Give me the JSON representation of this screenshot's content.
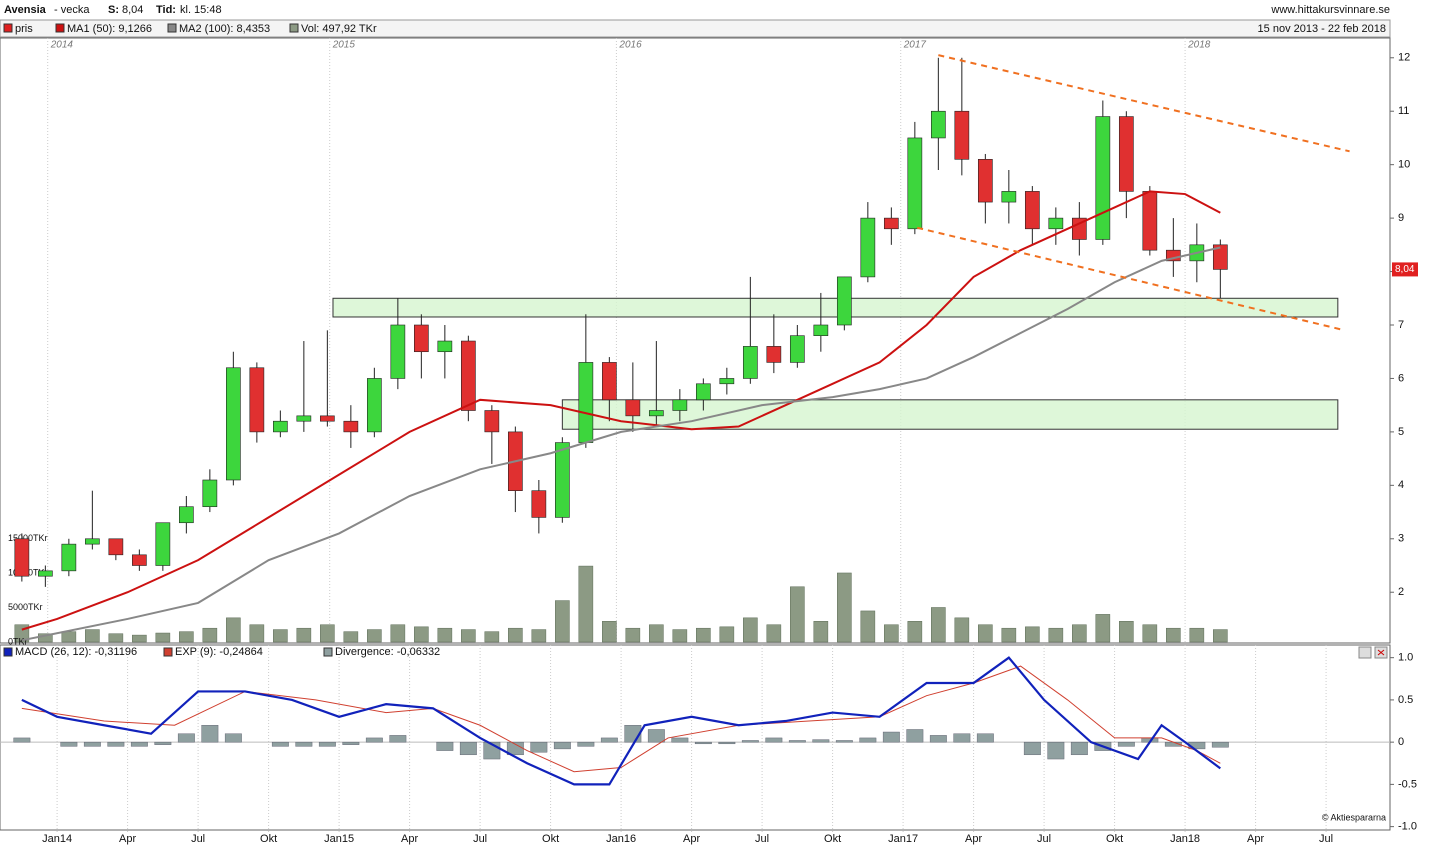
{
  "header": {
    "name": "Avensia",
    "period": "- vecka",
    "price_label": "S:",
    "price": "8,04",
    "time_label": "Tid:",
    "time": "kl. 15:48",
    "site": "www.hittakursvinnare.se",
    "date_range": "15 nov 2013 - 22 feb 2018"
  },
  "chart_data": [
    {
      "type": "candlestick",
      "name": "pris",
      "color": "#e02020",
      "up_color": "#3dd63d",
      "down_color": "#e03030",
      "x": [
        -1.5,
        -0.5,
        0.5,
        1.5,
        2.5,
        3.5,
        4.5,
        5.5,
        6.5,
        7.5,
        8.5,
        9.5,
        10.5,
        11.5,
        12.5,
        13.5,
        14.5,
        15.5,
        16.5,
        17.5,
        18.5,
        19.5,
        20.5,
        21.5,
        22.5,
        23.5,
        24.5,
        25.5,
        26.5,
        27.5,
        28.5,
        29.5,
        30.5,
        31.5,
        32.5,
        33.5,
        34.5,
        35.5,
        36.5,
        37.5,
        38.5,
        39.5,
        40.5,
        41.5,
        42.5,
        43.5,
        44.5,
        45.5,
        46.5,
        47.5,
        48.5,
        49.5
      ],
      "open": [
        3.0,
        2.3,
        2.4,
        2.9,
        3.0,
        2.7,
        2.5,
        3.3,
        3.6,
        4.1,
        6.2,
        5.0,
        5.2,
        5.3,
        5.2,
        5.0,
        6.0,
        7.0,
        6.5,
        6.7,
        5.4,
        5.0,
        3.9,
        3.4,
        4.8,
        6.3,
        5.6,
        5.3,
        5.4,
        5.6,
        5.9,
        6.0,
        6.6,
        6.3,
        6.8,
        7.0,
        7.9,
        9.0,
        8.8,
        10.5,
        11.0,
        10.1,
        9.3,
        9.5,
        8.8,
        9.0,
        8.6,
        10.9,
        9.5,
        8.4,
        8.2,
        8.5
      ],
      "high": [
        3.1,
        2.5,
        3.0,
        3.9,
        3.0,
        2.8,
        3.3,
        3.8,
        4.3,
        6.5,
        6.3,
        5.4,
        6.7,
        6.9,
        5.5,
        6.2,
        7.5,
        7.2,
        7.0,
        6.8,
        5.5,
        5.1,
        4.1,
        4.9,
        7.2,
        6.4,
        6.3,
        6.7,
        5.8,
        6.0,
        6.2,
        7.9,
        7.2,
        7.0,
        7.6,
        7.9,
        9.3,
        9.2,
        10.8,
        12.0,
        12.0,
        10.2,
        9.9,
        9.6,
        9.2,
        9.3,
        11.2,
        11.0,
        9.6,
        9.0,
        8.9,
        8.6
      ],
      "low": [
        2.2,
        2.1,
        2.3,
        2.8,
        2.6,
        2.4,
        2.4,
        3.1,
        3.5,
        4.0,
        4.8,
        4.9,
        5.0,
        5.1,
        4.7,
        4.9,
        5.8,
        6.0,
        6.0,
        5.2,
        4.4,
        3.5,
        3.1,
        3.3,
        4.7,
        5.2,
        5.0,
        5.1,
        5.2,
        5.4,
        5.7,
        5.9,
        6.1,
        6.2,
        6.5,
        6.9,
        7.8,
        8.5,
        8.7,
        9.9,
        9.8,
        8.9,
        8.9,
        8.5,
        8.5,
        8.3,
        8.5,
        9.0,
        8.3,
        7.9,
        7.8,
        7.5
      ],
      "close": [
        2.3,
        2.4,
        2.9,
        3.0,
        2.7,
        2.5,
        3.3,
        3.6,
        4.1,
        6.2,
        5.0,
        5.2,
        5.3,
        5.2,
        5.0,
        6.0,
        7.0,
        6.5,
        6.7,
        5.4,
        5.0,
        3.9,
        3.4,
        4.8,
        6.3,
        5.6,
        5.3,
        5.4,
        5.6,
        5.9,
        6.0,
        6.6,
        6.3,
        6.8,
        7.0,
        7.9,
        9.0,
        8.8,
        10.5,
        11.0,
        10.1,
        9.3,
        9.5,
        8.8,
        9.0,
        8.6,
        10.9,
        9.5,
        8.4,
        8.2,
        8.5,
        8.04
      ],
      "series": [
        {
          "name": "MA1 (50): 9,1266",
          "color": "#cc1111",
          "x": [
            -1.5,
            0,
            3,
            6,
            9,
            12,
            15,
            18,
            21,
            24,
            27,
            29,
            31,
            33,
            35,
            37,
            39,
            41,
            43,
            45,
            46.5,
            48,
            49.5
          ],
          "values": [
            1.3,
            1.5,
            2.0,
            2.6,
            3.4,
            4.2,
            5.0,
            5.6,
            5.5,
            5.2,
            5.05,
            5.1,
            5.5,
            5.9,
            6.3,
            7.0,
            7.9,
            8.4,
            8.8,
            9.2,
            9.5,
            9.45,
            9.1
          ]
        },
        {
          "name": "MA2 (100): 8,4353",
          "color": "#888888",
          "x": [
            -1.5,
            3,
            6,
            9,
            12,
            15,
            18,
            21,
            24,
            27,
            30,
            33,
            35,
            37,
            39,
            41,
            43,
            45,
            47,
            49.5
          ],
          "values": [
            1.1,
            1.5,
            1.8,
            2.6,
            3.1,
            3.8,
            4.3,
            4.6,
            5.0,
            5.2,
            5.5,
            5.65,
            5.8,
            6.0,
            6.4,
            6.85,
            7.3,
            7.8,
            8.2,
            8.45
          ]
        }
      ],
      "volume": {
        "name": "Vol: 497,92 TKr",
        "color": "#8c9a84",
        "values": [
          2500,
          1200,
          1500,
          1800,
          1200,
          1000,
          1300,
          1500,
          2000,
          3500,
          2500,
          1800,
          2000,
          2500,
          1500,
          1800,
          2500,
          2200,
          2000,
          1800,
          1500,
          2000,
          1800,
          6000,
          11000,
          3000,
          2000,
          2500,
          1800,
          2000,
          2200,
          3500,
          2500,
          8000,
          3000,
          10000,
          4500,
          2500,
          3000,
          5000,
          3500,
          2500,
          2000,
          2200,
          2000,
          2500,
          4000,
          3000,
          2500,
          2000,
          2000,
          1800
        ],
        "ylim": [
          0,
          15500
        ],
        "yticks": [
          {
            "value": 0,
            "label": "0TKr"
          },
          {
            "value": 5000,
            "label": "5000TKr"
          },
          {
            "value": 10000,
            "label": "10000TKr"
          },
          {
            "value": 15000,
            "label": "15000TKr"
          }
        ]
      },
      "xlim": [
        -2.43,
        56.72
      ],
      "xticks": [
        {
          "value": -0.4,
          "label": "2014"
        },
        {
          "value": 11.6,
          "label": "2015"
        },
        {
          "value": 23.8,
          "label": "2016"
        },
        {
          "value": 35.9,
          "label": "2017"
        },
        {
          "value": 48,
          "label": "2018"
        }
      ],
      "ylim": [
        1.05,
        12.37
      ],
      "yticks": [
        2,
        3,
        4,
        5,
        6,
        7,
        8,
        9,
        10,
        11,
        12
      ],
      "last_price": {
        "value": 8.04,
        "label": "8,04"
      },
      "zones": [
        {
          "x": [
            11.74,
            54.5
          ],
          "y": [
            7.15,
            7.5
          ]
        },
        {
          "x": [
            21.5,
            54.5
          ],
          "y": [
            5.05,
            5.6
          ]
        }
      ],
      "trendlines": [
        {
          "x": [
            37.5,
            55.0
          ],
          "y": [
            12.05,
            10.25
          ]
        },
        {
          "x": [
            36.6,
            54.8
          ],
          "y": [
            8.82,
            6.9
          ]
        }
      ]
    },
    {
      "type": "macd",
      "credit": "© Aktiespararna",
      "series": [
        {
          "name": "MACD (26, 12): -0,31196",
          "color": "#1122bb",
          "x": [
            -1.5,
            0,
            2,
            4,
            6,
            8,
            10,
            12,
            14,
            16,
            18,
            20,
            22,
            23.5,
            25,
            27,
            29,
            31,
            33,
            35,
            37,
            39,
            40.5,
            42,
            44,
            46,
            47,
            48,
            49.5
          ],
          "values": [
            0.5,
            0.3,
            0.2,
            0.1,
            0.6,
            0.6,
            0.5,
            0.3,
            0.45,
            0.4,
            0.05,
            -0.25,
            -0.5,
            -0.5,
            0.2,
            0.3,
            0.2,
            0.25,
            0.35,
            0.3,
            0.7,
            0.7,
            1.0,
            0.5,
            0.0,
            -0.2,
            0.2,
            0.0,
            -0.31
          ]
        },
        {
          "name": "EXP (9): -0,24864",
          "color": "#d04030",
          "x": [
            -1.5,
            2,
            5,
            8,
            11,
            14,
            16,
            18,
            20,
            22,
            24,
            26,
            29,
            32,
            35,
            37,
            39,
            41,
            43,
            45,
            47,
            48.5,
            49.5
          ],
          "values": [
            0.4,
            0.25,
            0.2,
            0.6,
            0.5,
            0.35,
            0.4,
            0.2,
            -0.1,
            -0.35,
            -0.3,
            0.05,
            0.2,
            0.25,
            0.3,
            0.55,
            0.7,
            0.9,
            0.5,
            0.05,
            0.05,
            -0.1,
            -0.25
          ]
        },
        {
          "name": "Divergence: -0,06332",
          "color": "#8fa0a0",
          "x": [
            -1.5,
            -0.5,
            0.5,
            1.5,
            2.5,
            3.5,
            4.5,
            5.5,
            6.5,
            7.5,
            8.5,
            9.5,
            10.5,
            11.5,
            12.5,
            13.5,
            14.5,
            15.5,
            16.5,
            17.5,
            18.5,
            19.5,
            20.5,
            21.5,
            22.5,
            23.5,
            24.5,
            25.5,
            26.5,
            27.5,
            28.5,
            29.5,
            30.5,
            31.5,
            32.5,
            33.5,
            34.5,
            35.5,
            36.5,
            37.5,
            38.5,
            39.5,
            40.5,
            41.5,
            42.5,
            43.5,
            44.5,
            45.5,
            46.5,
            47.5,
            48.5,
            49.5
          ],
          "values": [
            0.05,
            0.0,
            -0.05,
            -0.05,
            -0.05,
            -0.05,
            -0.03,
            0.1,
            0.2,
            0.1,
            0.0,
            -0.05,
            -0.05,
            -0.05,
            -0.03,
            0.05,
            0.08,
            0.0,
            -0.1,
            -0.15,
            -0.2,
            -0.15,
            -0.12,
            -0.08,
            -0.05,
            0.05,
            0.2,
            0.15,
            0.05,
            -0.02,
            -0.02,
            0.02,
            0.05,
            0.02,
            0.03,
            0.02,
            0.05,
            0.12,
            0.15,
            0.08,
            0.1,
            0.1,
            0.0,
            -0.15,
            -0.2,
            -0.15,
            -0.1,
            -0.05,
            0.05,
            -0.05,
            -0.08,
            -0.06
          ]
        }
      ],
      "xlim": [
        -2.43,
        56.72
      ],
      "xticks": [
        {
          "value": 0,
          "label": "Jan14"
        },
        {
          "value": 3,
          "label": "Apr"
        },
        {
          "value": 6,
          "label": "Jul"
        },
        {
          "value": 9,
          "label": "Okt"
        },
        {
          "value": 12,
          "label": "Jan15"
        },
        {
          "value": 15,
          "label": "Apr"
        },
        {
          "value": 18,
          "label": "Jul"
        },
        {
          "value": 21,
          "label": "Okt"
        },
        {
          "value": 24,
          "label": "Jan16"
        },
        {
          "value": 27,
          "label": "Apr"
        },
        {
          "value": 30,
          "label": "Jul"
        },
        {
          "value": 33,
          "label": "Okt"
        },
        {
          "value": 36,
          "label": "Jan17"
        },
        {
          "value": 39,
          "label": "Apr"
        },
        {
          "value": 42,
          "label": "Jul"
        },
        {
          "value": 45,
          "label": "Okt"
        },
        {
          "value": 48,
          "label": "Jan18"
        },
        {
          "value": 51,
          "label": "Apr"
        },
        {
          "value": 54,
          "label": "Jul"
        }
      ],
      "ylim": [
        -1.04,
        1.15
      ],
      "yticks": [
        {
          "value": 1,
          "label": "1.0"
        },
        0.5,
        0,
        -0.5,
        {
          "value": -1,
          "label": "-1.0"
        }
      ]
    }
  ]
}
